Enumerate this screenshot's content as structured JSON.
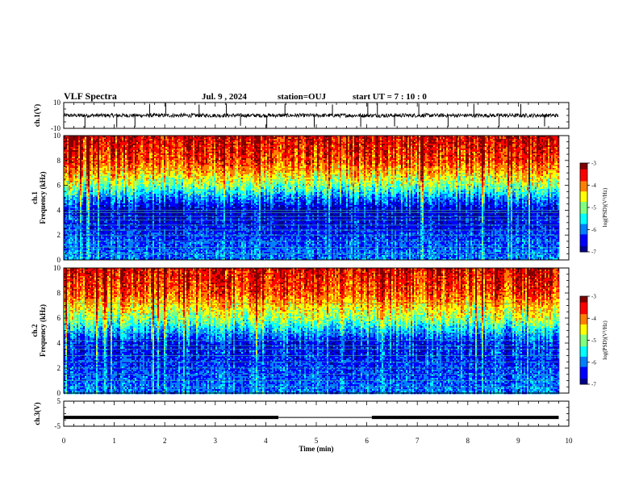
{
  "header": {
    "title": "VLF Spectra",
    "date": "Jul. 9 , 2024",
    "station": "station=OUJ",
    "start": "start UT = 7 : 10 : 0"
  },
  "chart_data": [
    {
      "type": "line",
      "panel": "ch1-waveform",
      "ylabel": "ch.1(V)",
      "ylim": [
        -10,
        10
      ],
      "yticks": [
        "10",
        "-10"
      ],
      "xlim": [
        0,
        10
      ],
      "data_extent_min": [
        0,
        9.8
      ],
      "series": [
        {
          "baseline_V": 0,
          "noise_band_V": [
            -2.5,
            2.5
          ],
          "spikes": [
            {
              "t": 0.42,
              "v": -9.5
            },
            {
              "t": 1.05,
              "v": -9.2
            },
            {
              "t": 1.41,
              "v": -9.0
            },
            {
              "t": 1.7,
              "v": 9.0
            },
            {
              "t": 2.02,
              "v": 9.5
            },
            {
              "t": 2.68,
              "v": 8.5
            },
            {
              "t": 3.22,
              "v": 9.2
            },
            {
              "t": 3.5,
              "v": -8.0
            },
            {
              "t": 4.02,
              "v": -9.5
            },
            {
              "t": 4.38,
              "v": 9.0
            },
            {
              "t": 4.96,
              "v": -9.2
            },
            {
              "t": 5.32,
              "v": 8.5
            },
            {
              "t": 5.88,
              "v": -9.0
            },
            {
              "t": 6.02,
              "v": 9.5
            },
            {
              "t": 6.21,
              "v": 9.2
            },
            {
              "t": 6.55,
              "v": -8.5
            },
            {
              "t": 7.03,
              "v": 9.2
            },
            {
              "t": 7.61,
              "v": -8.8
            },
            {
              "t": 8.12,
              "v": 9.0
            },
            {
              "t": 8.62,
              "v": -9.0
            },
            {
              "t": 9.05,
              "v": 8.8
            },
            {
              "t": 9.52,
              "v": -8.5
            }
          ]
        }
      ]
    },
    {
      "type": "heatmap",
      "panel": "ch1-spectrogram",
      "ylabel": "ch.1\nFrequency (kHz)",
      "ylim": [
        0,
        10
      ],
      "yticks": [
        "0",
        "2",
        "4",
        "6",
        "8",
        "10"
      ],
      "xlim": [
        0,
        10
      ],
      "data_extent_min": [
        0,
        9.8
      ],
      "colorbar": {
        "label": "log(PSD)(V²/Hz)",
        "range": [
          -7,
          -3
        ],
        "ticks": [
          "-3",
          "-4",
          "-5",
          "-6",
          "-7"
        ]
      },
      "profile_by_freq_kHz": [
        {
          "f": 0,
          "logpsd": -6.0
        },
        {
          "f": 2,
          "logpsd": -6.3
        },
        {
          "f": 4,
          "logpsd": -6.8
        },
        {
          "f": 5,
          "logpsd": -6.0
        },
        {
          "f": 6,
          "logpsd": -5.0
        },
        {
          "f": 7,
          "logpsd": -4.3
        },
        {
          "f": 8,
          "logpsd": -3.7
        },
        {
          "f": 10,
          "logpsd": -3.3
        }
      ],
      "horizontal_lines_kHz": [
        0.5,
        1.0,
        1.5,
        2.0,
        2.4,
        2.8,
        3.2,
        3.5,
        3.8,
        4.0,
        7.2
      ]
    },
    {
      "type": "heatmap",
      "panel": "ch2-spectrogram",
      "ylabel": "ch.2\nFrequency (kHz)",
      "ylim": [
        0,
        10
      ],
      "yticks": [
        "0",
        "2",
        "4",
        "6",
        "8",
        "10"
      ],
      "xlim": [
        0,
        10
      ],
      "data_extent_min": [
        0,
        9.8
      ],
      "colorbar": {
        "label": "log(PSD)(V²/Hz)",
        "range": [
          -7,
          -3
        ],
        "ticks": [
          "-3",
          "-4",
          "-5",
          "-6",
          "-7"
        ]
      },
      "profile_by_freq_kHz": [
        {
          "f": 0,
          "logpsd": -6.0
        },
        {
          "f": 2,
          "logpsd": -6.3
        },
        {
          "f": 4,
          "logpsd": -6.5
        },
        {
          "f": 5,
          "logpsd": -5.8
        },
        {
          "f": 6,
          "logpsd": -4.9
        },
        {
          "f": 7,
          "logpsd": -4.4
        },
        {
          "f": 8,
          "logpsd": -3.8
        },
        {
          "f": 10,
          "logpsd": -3.4
        }
      ],
      "horizontal_lines_kHz": [
        0.5,
        1.0,
        1.5,
        2.0,
        2.5,
        3.0,
        3.5,
        3.8,
        4.2,
        4.8,
        7.2
      ]
    },
    {
      "type": "line",
      "panel": "ch3-waveform",
      "ylabel": "ch.3(V)",
      "ylim": [
        -5,
        5
      ],
      "yticks": [
        "5",
        "-5"
      ],
      "xlim": [
        0,
        10
      ],
      "xlabel": "Time (min)",
      "xticks": [
        "0",
        "1",
        "2",
        "3",
        "4",
        "5",
        "6",
        "7",
        "8",
        "9",
        "10"
      ],
      "series": [
        {
          "segments": [
            {
              "t0": 0,
              "t1": 4.25,
              "v": -1.5,
              "thick": true
            },
            {
              "t0": 4.25,
              "t1": 6.1,
              "v": -1.5,
              "thick": false
            },
            {
              "t0": 6.1,
              "t1": 9.8,
              "v": -1.5,
              "thick": true
            }
          ]
        }
      ]
    }
  ],
  "colors": {
    "jet": [
      "#00008f",
      "#0000ff",
      "#0080ff",
      "#00ffff",
      "#80ff80",
      "#ffff00",
      "#ff8000",
      "#ff0000",
      "#800000"
    ]
  }
}
